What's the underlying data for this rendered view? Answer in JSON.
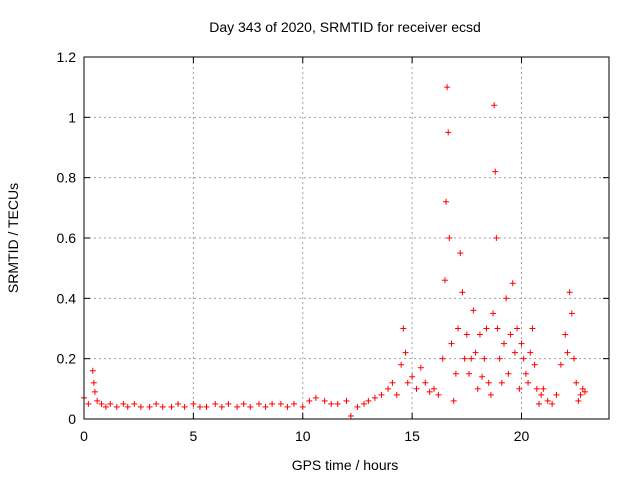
{
  "chart_data": {
    "type": "scatter",
    "title": "Day 343 of 2020, SRMTID for receiver ecsd",
    "xlabel": "GPS time / hours",
    "ylabel": "SRMTID / TECUs",
    "xlim": [
      0,
      24
    ],
    "ylim": [
      0,
      1.2
    ],
    "x_ticks": [
      0,
      5,
      10,
      15,
      20
    ],
    "x_tick_labels": [
      "0",
      "5",
      "10",
      "15",
      "20"
    ],
    "y_ticks": [
      0,
      0.2,
      0.4,
      0.6,
      0.8,
      1.0,
      1.2
    ],
    "y_tick_labels": [
      "0",
      "0.2",
      "0.4",
      "0.6",
      "0.8",
      "1",
      "1.2"
    ],
    "grid": true,
    "marker": "plus",
    "color": "#ff0000",
    "series": [
      {
        "name": "ecsd",
        "x": [
          0.0,
          0.2,
          0.4,
          0.45,
          0.5,
          0.6,
          0.8,
          1.0,
          1.2,
          1.5,
          1.8,
          2.0,
          2.3,
          2.6,
          3.0,
          3.3,
          3.6,
          4.0,
          4.3,
          4.6,
          5.0,
          5.3,
          5.6,
          6.0,
          6.3,
          6.6,
          7.0,
          7.3,
          7.6,
          8.0,
          8.3,
          8.6,
          9.0,
          9.3,
          9.6,
          10.0,
          10.3,
          10.6,
          11.0,
          11.3,
          11.6,
          12.0,
          12.2,
          12.5,
          12.8,
          13.0,
          13.3,
          13.6,
          13.9,
          14.1,
          14.3,
          14.5,
          14.6,
          14.7,
          14.8,
          15.0,
          15.2,
          15.4,
          15.6,
          15.8,
          16.0,
          16.2,
          16.4,
          16.5,
          16.55,
          16.6,
          16.65,
          16.7,
          16.8,
          16.9,
          17.0,
          17.1,
          17.2,
          17.3,
          17.4,
          17.5,
          17.6,
          17.7,
          17.8,
          17.9,
          18.0,
          18.1,
          18.2,
          18.3,
          18.4,
          18.5,
          18.6,
          18.7,
          18.75,
          18.8,
          18.85,
          18.9,
          19.0,
          19.1,
          19.2,
          19.3,
          19.4,
          19.5,
          19.6,
          19.7,
          19.8,
          19.9,
          20.0,
          20.1,
          20.2,
          20.3,
          20.4,
          20.5,
          20.6,
          20.7,
          20.8,
          20.9,
          21.0,
          21.2,
          21.4,
          21.6,
          21.8,
          22.0,
          22.1,
          22.2,
          22.3,
          22.4,
          22.5,
          22.6,
          22.7,
          22.8,
          22.9
        ],
        "y": [
          0.07,
          0.05,
          0.16,
          0.12,
          0.09,
          0.06,
          0.05,
          0.04,
          0.05,
          0.04,
          0.05,
          0.04,
          0.05,
          0.04,
          0.04,
          0.05,
          0.04,
          0.04,
          0.05,
          0.04,
          0.05,
          0.04,
          0.04,
          0.05,
          0.04,
          0.05,
          0.04,
          0.05,
          0.04,
          0.05,
          0.04,
          0.05,
          0.05,
          0.04,
          0.05,
          0.04,
          0.06,
          0.07,
          0.06,
          0.05,
          0.05,
          0.06,
          0.01,
          0.04,
          0.05,
          0.06,
          0.07,
          0.08,
          0.1,
          0.12,
          0.08,
          0.18,
          0.3,
          0.22,
          0.12,
          0.14,
          0.1,
          0.17,
          0.12,
          0.09,
          0.1,
          0.08,
          0.2,
          0.46,
          0.72,
          1.1,
          0.95,
          0.6,
          0.25,
          0.06,
          0.15,
          0.3,
          0.55,
          0.42,
          0.2,
          0.28,
          0.15,
          0.2,
          0.36,
          0.22,
          0.1,
          0.28,
          0.14,
          0.2,
          0.3,
          0.12,
          0.08,
          0.35,
          1.04,
          0.82,
          0.6,
          0.3,
          0.2,
          0.12,
          0.25,
          0.4,
          0.15,
          0.28,
          0.45,
          0.22,
          0.3,
          0.1,
          0.25,
          0.2,
          0.15,
          0.12,
          0.22,
          0.3,
          0.18,
          0.1,
          0.05,
          0.08,
          0.1,
          0.06,
          0.05,
          0.08,
          0.18,
          0.28,
          0.22,
          0.42,
          0.35,
          0.2,
          0.12,
          0.06,
          0.08,
          0.1,
          0.09
        ]
      }
    ]
  }
}
